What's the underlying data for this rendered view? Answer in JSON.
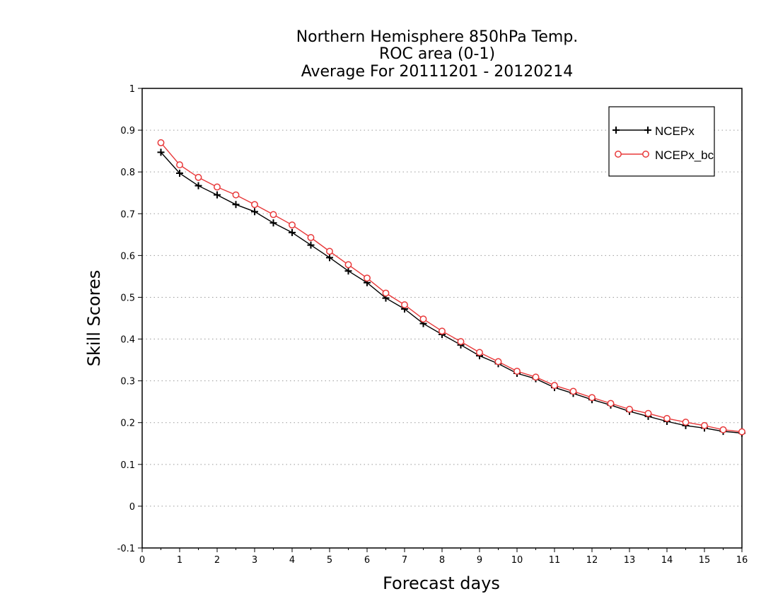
{
  "colors": {
    "NCEPx": "#000000",
    "NCEPx_bc": "#e8393a",
    "grid": "#9a9a9a",
    "axis": "#000000",
    "background": "#ffffff"
  },
  "chart_data": {
    "type": "line",
    "title_lines": [
      "Northern Hemisphere 850hPa Temp.",
      "ROC area (0-1)",
      "Average For 20111201 - 20120214"
    ],
    "xlabel": "Forecast days",
    "ylabel": "Skill Scores",
    "xlim": [
      0,
      16
    ],
    "ylim": [
      -0.1,
      1
    ],
    "xticks": [
      "0",
      "1",
      "2",
      "3",
      "4",
      "5",
      "6",
      "7",
      "8",
      "9",
      "10",
      "11",
      "12",
      "13",
      "14",
      "15",
      "16"
    ],
    "yticks": [
      "-0.1",
      "0",
      "0.1",
      "0.2",
      "0.3",
      "0.4",
      "0.5",
      "0.6",
      "0.7",
      "0.8",
      "0.9",
      "1"
    ],
    "grid": "horizontal dotted",
    "legend_position": "top-right",
    "x": [
      0.5,
      1,
      1.5,
      2,
      2.5,
      3,
      3.5,
      4,
      4.5,
      5,
      5.5,
      6,
      6.5,
      7,
      7.5,
      8,
      8.5,
      9,
      9.5,
      10,
      10.5,
      11,
      11.5,
      12,
      12.5,
      13,
      13.5,
      14,
      14.5,
      15,
      15.5,
      16
    ],
    "series": [
      {
        "name": "NCEPx",
        "marker": "plus",
        "values": [
          0.847,
          0.797,
          0.767,
          0.745,
          0.722,
          0.705,
          0.678,
          0.655,
          0.625,
          0.595,
          0.563,
          0.535,
          0.498,
          0.472,
          0.437,
          0.411,
          0.386,
          0.36,
          0.341,
          0.318,
          0.305,
          0.284,
          0.27,
          0.255,
          0.242,
          0.227,
          0.215,
          0.203,
          0.193,
          0.187,
          0.179,
          0.175
        ]
      },
      {
        "name": "NCEPx_bc",
        "marker": "circle",
        "values": [
          0.87,
          0.817,
          0.787,
          0.764,
          0.745,
          0.722,
          0.698,
          0.673,
          0.643,
          0.61,
          0.578,
          0.546,
          0.51,
          0.482,
          0.448,
          0.419,
          0.394,
          0.368,
          0.346,
          0.323,
          0.309,
          0.289,
          0.275,
          0.26,
          0.246,
          0.232,
          0.222,
          0.21,
          0.201,
          0.193,
          0.183,
          0.178
        ]
      }
    ]
  }
}
